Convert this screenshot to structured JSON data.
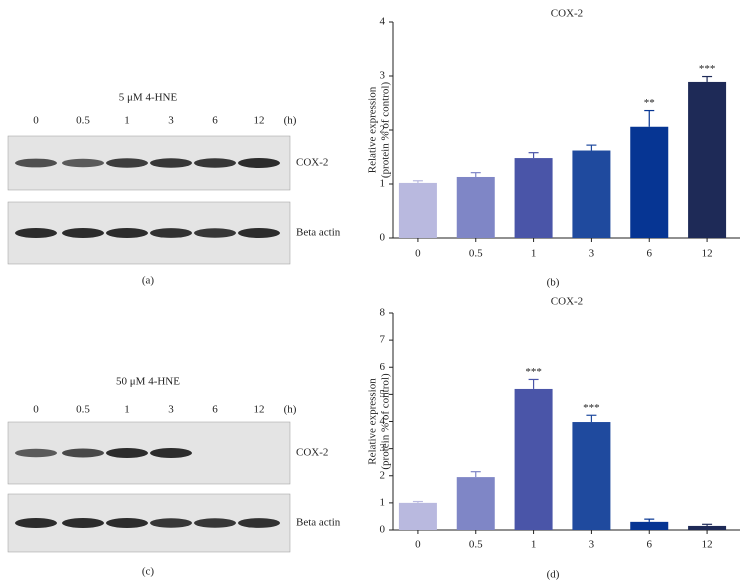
{
  "blots": [
    {
      "title": "5 μM 4-HNE",
      "lanes": [
        "0",
        "0.5",
        "1",
        "3",
        "6",
        "12"
      ],
      "unit": "(h)",
      "bands": [
        "COX-2",
        "Beta actin"
      ],
      "caption": "(a)"
    },
    {
      "title": "50 μM 4-HNE",
      "lanes": [
        "0",
        "0.5",
        "1",
        "3",
        "6",
        "12"
      ],
      "unit": "(h)",
      "bands": [
        "COX-2",
        "Beta actin"
      ],
      "caption": "(c)"
    }
  ],
  "chart_data": [
    {
      "type": "bar",
      "title": "COX-2",
      "ylabel": [
        "Relative expression",
        "(protein % of control)"
      ],
      "categories": [
        "0",
        "0.5",
        "1",
        "3",
        "6",
        "12"
      ],
      "values": [
        1.02,
        1.13,
        1.48,
        1.62,
        2.06,
        2.89
      ],
      "errors": [
        0.04,
        0.08,
        0.1,
        0.1,
        0.3,
        0.1
      ],
      "colors": [
        "#b9b9df",
        "#7f86c6",
        "#4a55a8",
        "#1f4a9e",
        "#063593",
        "#1e2a57"
      ],
      "annotations": [
        {
          "category": "6",
          "label": "**"
        },
        {
          "category": "12",
          "label": "***"
        }
      ],
      "ylim": [
        0,
        4
      ],
      "yticks": [
        0,
        1,
        2,
        3,
        4
      ],
      "caption": "(b)"
    },
    {
      "type": "bar",
      "title": "COX-2",
      "ylabel": [
        "Relative expression",
        "(protein % of control)"
      ],
      "categories": [
        "0",
        "0.5",
        "1",
        "3",
        "6",
        "12"
      ],
      "values": [
        1.0,
        1.95,
        5.2,
        3.98,
        0.3,
        0.15
      ],
      "errors": [
        0.05,
        0.2,
        0.35,
        0.25,
        0.1,
        0.06
      ],
      "colors": [
        "#b9b9df",
        "#7f86c6",
        "#4a55a8",
        "#1f4a9e",
        "#063593",
        "#1e2a57"
      ],
      "annotations": [
        {
          "category": "1",
          "label": "***"
        },
        {
          "category": "3",
          "label": "***"
        }
      ],
      "ylim": [
        0,
        8
      ],
      "yticks": [
        0,
        1,
        2,
        3,
        4,
        5,
        6,
        7,
        8
      ],
      "caption": "(d)"
    }
  ]
}
